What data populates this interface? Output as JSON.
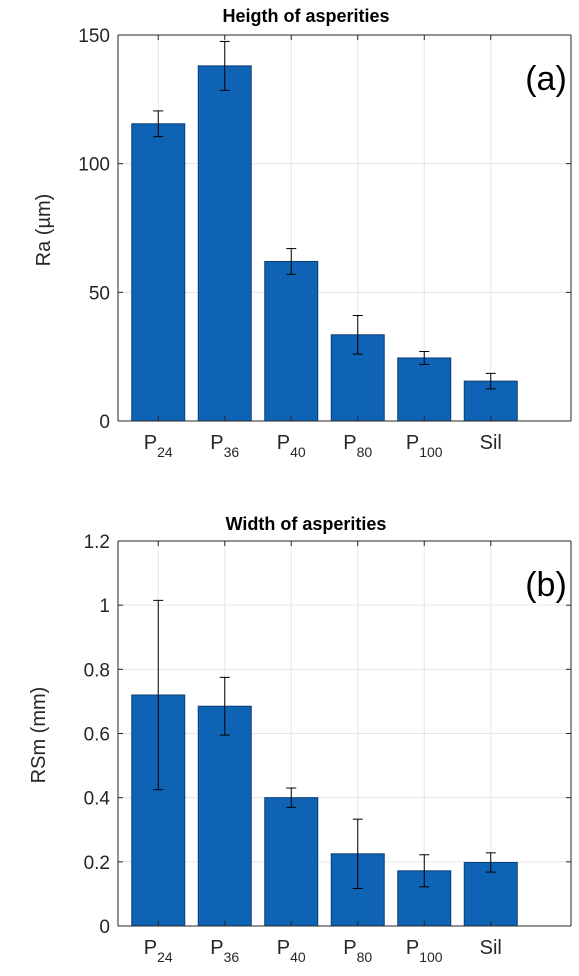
{
  "figure": {
    "colors": {
      "bar": "#0f63b5",
      "bar_edge": "#0b3d73",
      "axis": "#262626",
      "grid": "#e6e6e6",
      "errorbar": "#000000"
    }
  },
  "chart_data": [
    {
      "type": "bar",
      "title": "Heigth of asperities",
      "panel_label": "(a)",
      "xlabel": "",
      "ylabel": "Ra (µm)",
      "ylim": [
        0,
        150
      ],
      "yticks": [
        0,
        50,
        100,
        150
      ],
      "grid": true,
      "categories": [
        {
          "base": "P",
          "sub": "24"
        },
        {
          "base": "P",
          "sub": "36"
        },
        {
          "base": "P",
          "sub": "40"
        },
        {
          "base": "P",
          "sub": "80"
        },
        {
          "base": "P",
          "sub": "100"
        },
        {
          "base": "Sil",
          "sub": ""
        }
      ],
      "values": [
        115.5,
        138,
        62,
        33.5,
        24.5,
        15.5
      ],
      "errors": [
        5,
        9.5,
        5,
        7.5,
        2.5,
        3
      ]
    },
    {
      "type": "bar",
      "title": "Width of asperities",
      "panel_label": "(b)",
      "xlabel": "",
      "ylabel": "RSm (mm)",
      "ylim": [
        0,
        1.2
      ],
      "yticks": [
        0,
        0.2,
        0.4,
        0.6,
        0.8,
        1,
        1.2
      ],
      "grid": true,
      "categories": [
        {
          "base": "P",
          "sub": "24"
        },
        {
          "base": "P",
          "sub": "36"
        },
        {
          "base": "P",
          "sub": "40"
        },
        {
          "base": "P",
          "sub": "80"
        },
        {
          "base": "P",
          "sub": "100"
        },
        {
          "base": "Sil",
          "sub": ""
        }
      ],
      "values": [
        0.72,
        0.685,
        0.4,
        0.225,
        0.172,
        0.198
      ],
      "errors": [
        0.295,
        0.09,
        0.03,
        0.108,
        0.05,
        0.03
      ]
    }
  ]
}
